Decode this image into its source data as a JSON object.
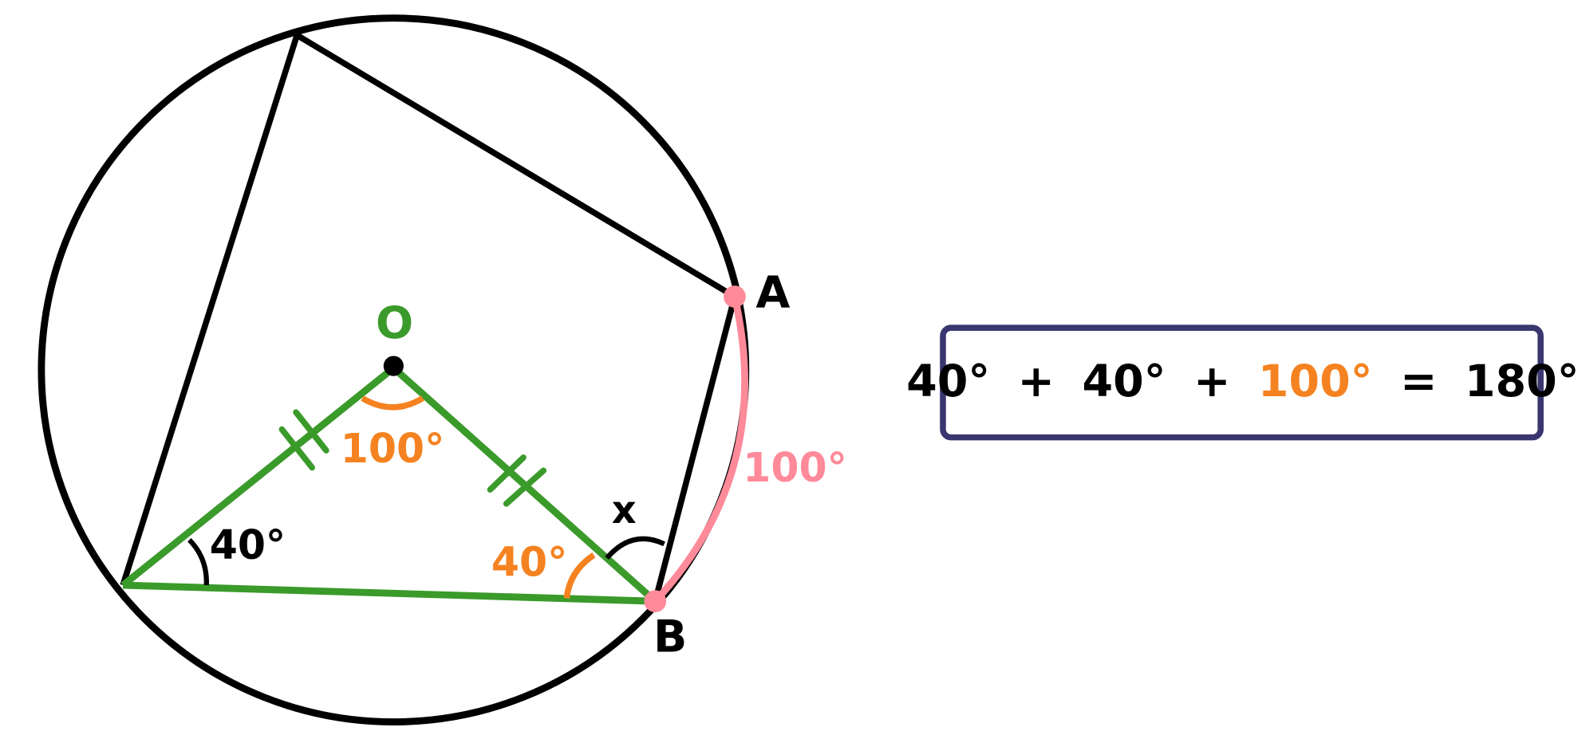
{
  "labels": {
    "center": "O",
    "point_a": "A",
    "point_b": "B",
    "unknown": "x"
  },
  "angles": {
    "center": "100°",
    "left_base": "40°",
    "right_base": "40°",
    "arc": "100°"
  },
  "equation": [
    "40°",
    "+",
    "40°",
    "+",
    "100°",
    "=",
    "180°"
  ]
}
